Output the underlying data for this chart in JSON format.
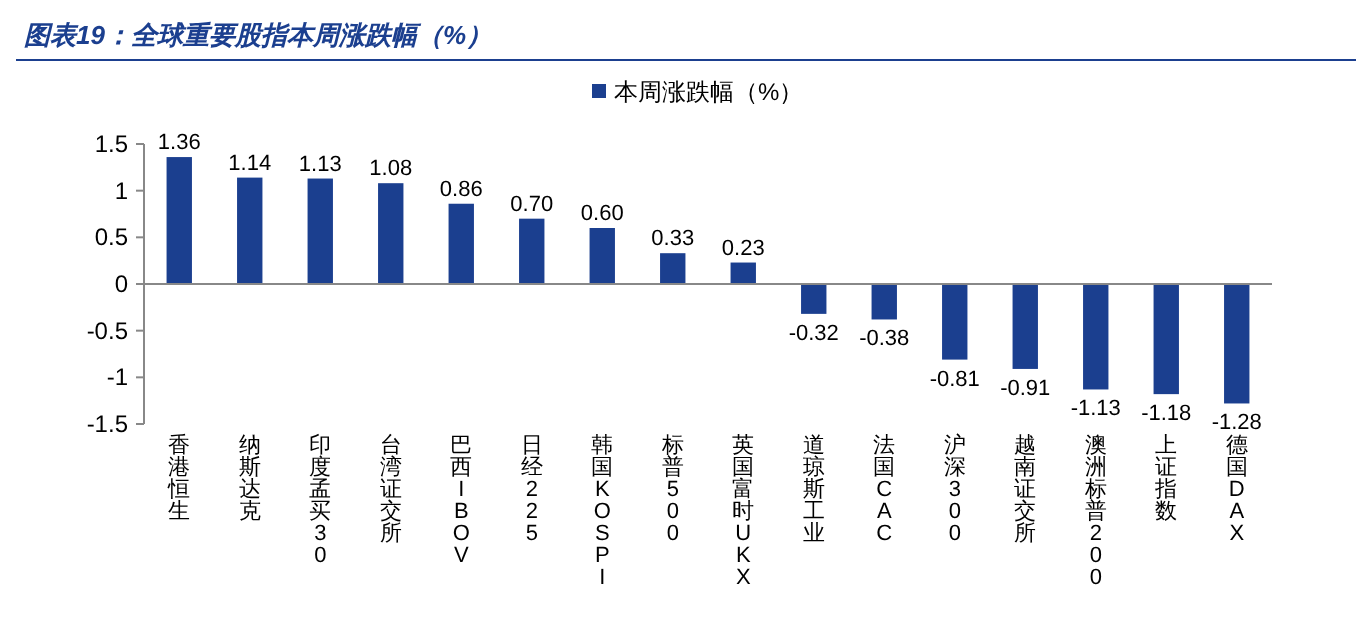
{
  "chart_data": {
    "type": "bar",
    "title": "图表19：全球重要股指本周涨跌幅（%）",
    "categories": [
      "香港恒生",
      "纳斯达克",
      "印度孟买30",
      "台湾证交所",
      "巴西IBOV",
      "日经225",
      "韩国KOSPI",
      "标普500",
      "英国富时UKX",
      "道琼斯工业",
      "法国CAC",
      "沪深300",
      "越南证交所",
      "澳洲标普200",
      "上证指数",
      "德国DAX"
    ],
    "series": [
      {
        "name": "本周涨跌幅（%）",
        "color": "#1b3f8f",
        "values": [
          1.36,
          1.14,
          1.13,
          1.08,
          0.86,
          0.7,
          0.6,
          0.33,
          0.23,
          -0.32,
          -0.38,
          -0.81,
          -0.91,
          -1.13,
          -1.18,
          -1.28
        ]
      }
    ],
    "value_labels": [
      "1.36",
      "1.14",
      "1.13",
      "1.08",
      "0.86",
      "0.70",
      "0.60",
      "0.33",
      "0.23",
      "-0.32",
      "-0.38",
      "-0.81",
      "-0.91",
      "-1.13",
      "-1.18",
      "-1.28"
    ],
    "ylim": [
      -1.5,
      1.5
    ],
    "yticks": [
      -1.5,
      -1,
      -0.5,
      0,
      0.5,
      1,
      1.5
    ],
    "legend": "top"
  }
}
